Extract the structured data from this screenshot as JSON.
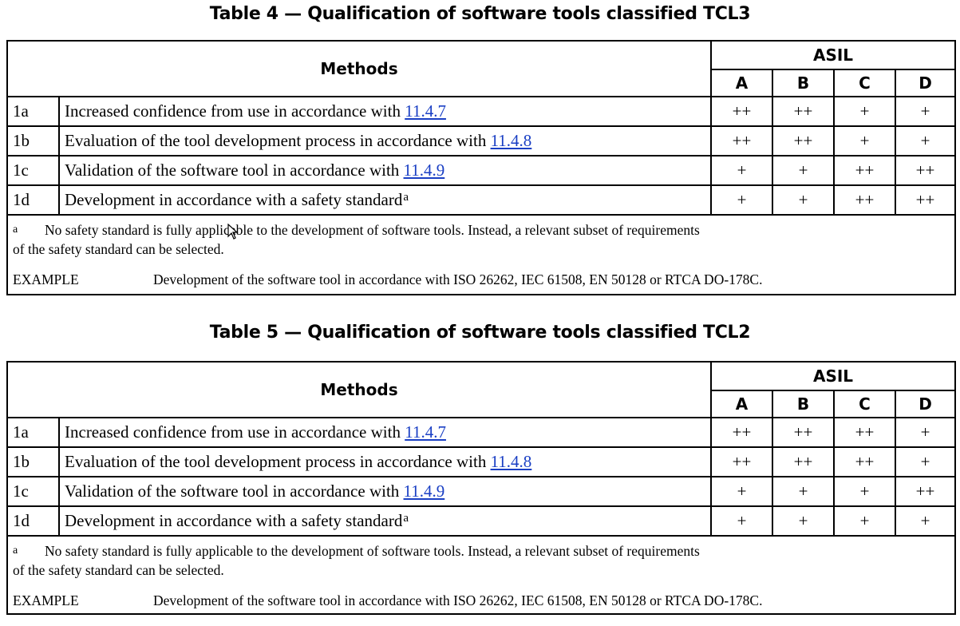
{
  "tables": [
    {
      "caption": "Table 4 — Qualification of software tools classified TCL3",
      "header": {
        "methods": "Methods",
        "group": "ASIL",
        "columns": [
          "A",
          "B",
          "C",
          "D"
        ]
      },
      "rows": [
        {
          "id": "1a",
          "text": "Increased confidence from use in accordance with ",
          "ref": "11.4.7",
          "sup": "",
          "marks": [
            "++",
            "++",
            "+",
            "+"
          ]
        },
        {
          "id": "1b",
          "text": "Evaluation of the tool development process in accordance with ",
          "ref": "11.4.8",
          "sup": "",
          "marks": [
            "++",
            "++",
            "+",
            "+"
          ]
        },
        {
          "id": "1c",
          "text": "Validation of the software tool in accordance with ",
          "ref": "11.4.9",
          "sup": "",
          "marks": [
            "+",
            "+",
            "++",
            "++"
          ]
        },
        {
          "id": "1d",
          "text": "Development in accordance with a safety standard",
          "ref": "",
          "sup": "a",
          "marks": [
            "+",
            "+",
            "++",
            "++"
          ]
        }
      ],
      "footnote": {
        "marker": "a",
        "line1": "No safety standard is fully applicable to the development of software tools. Instead, a relevant subset of requirements",
        "line2": "of the safety standard can be selected."
      },
      "example": {
        "label": "EXAMPLE",
        "text": "Development of the software tool in accordance with ISO 26262, IEC 61508, EN 50128 or RTCA DO-178C."
      }
    },
    {
      "caption": "Table 5 — Qualification of software tools classified TCL2",
      "header": {
        "methods": "Methods",
        "group": "ASIL",
        "columns": [
          "A",
          "B",
          "C",
          "D"
        ]
      },
      "rows": [
        {
          "id": "1a",
          "text": "Increased confidence from use in accordance with ",
          "ref": "11.4.7",
          "sup": "",
          "marks": [
            "++",
            "++",
            "++",
            "+"
          ]
        },
        {
          "id": "1b",
          "text": "Evaluation of the tool development process in accordance with ",
          "ref": "11.4.8",
          "sup": "",
          "marks": [
            "++",
            "++",
            "++",
            "+"
          ]
        },
        {
          "id": "1c",
          "text": "Validation of the software tool in accordance with ",
          "ref": "11.4.9",
          "sup": "",
          "marks": [
            "+",
            "+",
            "+",
            "++"
          ]
        },
        {
          "id": "1d",
          "text": "Development in accordance with a safety standard",
          "ref": "",
          "sup": "a",
          "marks": [
            "+",
            "+",
            "+",
            "+"
          ]
        }
      ],
      "footnote": {
        "marker": "a",
        "line1": "No safety standard is fully applicable to the development of software tools. Instead, a relevant subset of requirements",
        "line2": "of the safety standard can be selected."
      },
      "example": {
        "label": "EXAMPLE",
        "text": "Development of the software tool in accordance with ISO 26262, IEC 61508, EN 50128 or RTCA DO-178C."
      }
    }
  ],
  "colors": {
    "link": "#1a3fc4",
    "border": "#000000"
  },
  "cursor_icon": "arrow-pointer-icon"
}
